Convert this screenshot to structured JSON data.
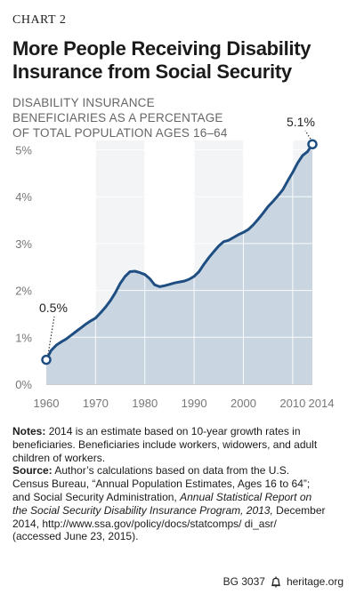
{
  "header": {
    "chart_label": "CHART 2",
    "title": "More People Receiving Disability Insurance from Social Security"
  },
  "chart_data": {
    "type": "area",
    "title": "More People Receiving Disability Insurance from Social Security",
    "ylabel_lines": [
      "DISABILITY INSURANCE",
      "BENEFICIARIES AS A PERCENTAGE",
      "OF TOTAL POPULATION AGES 16–64"
    ],
    "x": [
      1960,
      1961,
      1962,
      1963,
      1964,
      1965,
      1966,
      1967,
      1968,
      1969,
      1970,
      1971,
      1972,
      1973,
      1974,
      1975,
      1976,
      1977,
      1978,
      1979,
      1980,
      1981,
      1982,
      1983,
      1984,
      1985,
      1986,
      1987,
      1988,
      1989,
      1990,
      1991,
      1992,
      1993,
      1994,
      1995,
      1996,
      1997,
      1998,
      1999,
      2000,
      2001,
      2002,
      2003,
      2004,
      2005,
      2006,
      2007,
      2008,
      2009,
      2010,
      2011,
      2012,
      2013,
      2014
    ],
    "values": [
      0.52,
      0.72,
      0.83,
      0.9,
      0.96,
      1.04,
      1.12,
      1.2,
      1.28,
      1.35,
      1.41,
      1.52,
      1.64,
      1.78,
      1.95,
      2.15,
      2.3,
      2.4,
      2.41,
      2.38,
      2.34,
      2.25,
      2.12,
      2.08,
      2.1,
      2.13,
      2.16,
      2.18,
      2.2,
      2.24,
      2.3,
      2.4,
      2.56,
      2.7,
      2.83,
      2.95,
      3.04,
      3.07,
      3.13,
      3.19,
      3.24,
      3.3,
      3.4,
      3.52,
      3.65,
      3.79,
      3.9,
      4.02,
      4.15,
      4.34,
      4.52,
      4.72,
      4.88,
      4.96,
      5.12
    ],
    "xlim": [
      1960,
      2014
    ],
    "ylim": [
      0,
      5.2
    ],
    "xticks": [
      "1960",
      "1970",
      "1980",
      "1990",
      "2000",
      "2010",
      "2014"
    ],
    "yticks": [
      "0%",
      "1%",
      "2%",
      "3%",
      "4%",
      "5%"
    ],
    "annotations": [
      {
        "x": 1960,
        "value": 0.52,
        "label": "0.5%"
      },
      {
        "x": 2014,
        "value": 5.12,
        "label": "5.1%"
      }
    ],
    "colors": {
      "fill": "#c9d6e1",
      "line": "#1f4e82",
      "band": "#dbe3ea",
      "grid": "#ffffff"
    },
    "grid": true
  },
  "notes": {
    "notes_label": "Notes:",
    "notes_lines": [
      "2014 is an estimate based on 10-year growth rates in",
      "beneficiaries. Beneficiaries include workers, widowers, and adult",
      "children of workers."
    ],
    "source_label": "Source:",
    "source_lines": [
      "Author’s calculations based on data from the U.S.",
      "Census Bureau, “Annual Population Estimates, Ages 16 to 64”;",
      "and Social Security Administration,",
      "Annual Statistical Report on",
      "the Social Security Disability Insurance Program, 2013,",
      "December",
      "2014, http://www.ssa.gov/policy/docs/statcomps/ di_asr/",
      "(accessed June 23, 2015)."
    ]
  },
  "footer": {
    "code": "BG 3037",
    "site": "heritage.org"
  }
}
